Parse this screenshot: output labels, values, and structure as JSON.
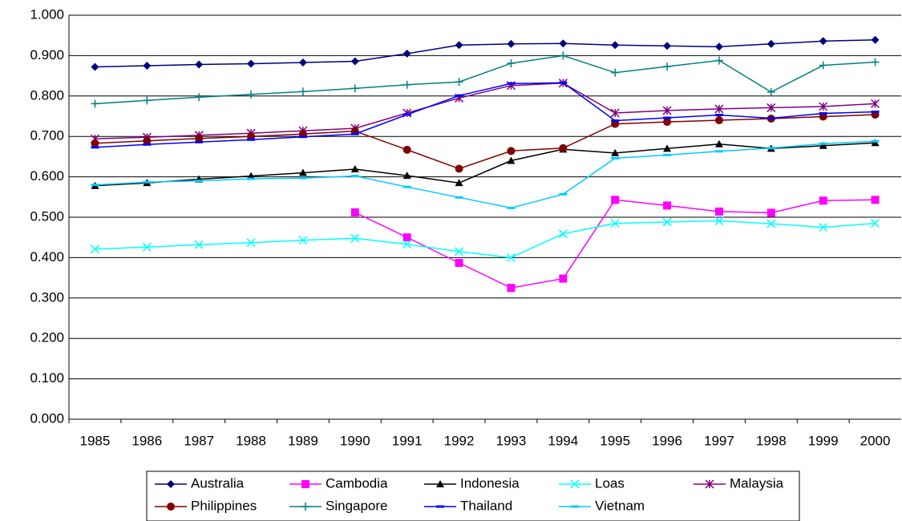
{
  "chart_data": {
    "type": "line",
    "categories": [
      "1985",
      "1986",
      "1987",
      "1988",
      "1989",
      "1990",
      "1991",
      "1992",
      "1993",
      "1994",
      "1995",
      "1996",
      "1997",
      "1998",
      "1999",
      "2000"
    ],
    "ylim": [
      0,
      1
    ],
    "yticks": [
      {
        "value": 0,
        "label": "0.000"
      },
      {
        "value": 0.1,
        "label": "0.100"
      },
      {
        "value": 0.2,
        "label": "0.200"
      },
      {
        "value": 0.3,
        "label": "0.300"
      },
      {
        "value": 0.4,
        "label": "0.400"
      },
      {
        "value": 0.5,
        "label": "0.500"
      },
      {
        "value": 0.6,
        "label": "0.600"
      },
      {
        "value": 0.7,
        "label": "0.700"
      },
      {
        "value": 0.8,
        "label": "0.800"
      },
      {
        "value": 0.9,
        "label": "0.900"
      },
      {
        "value": 1,
        "label": "1.000"
      }
    ],
    "grid": true,
    "legend": "bottom",
    "series": [
      {
        "name": "Australia",
        "color": "#000080",
        "marker": "diamond",
        "values": [
          0.872,
          0.875,
          0.878,
          0.88,
          0.883,
          0.886,
          0.905,
          0.926,
          0.929,
          0.93,
          0.926,
          0.924,
          0.922,
          0.929,
          0.936,
          0.939
        ]
      },
      {
        "name": "Cambodia",
        "color": "#ff00ff",
        "marker": "square",
        "values": [
          null,
          null,
          null,
          null,
          null,
          0.512,
          0.45,
          0.387,
          0.325,
          0.348,
          0.543,
          0.529,
          0.514,
          0.511,
          0.541,
          0.543
        ]
      },
      {
        "name": "Indonesia",
        "color": "#000000",
        "marker": "triangle",
        "values": [
          0.578,
          0.585,
          0.594,
          0.602,
          0.61,
          0.619,
          0.603,
          0.585,
          0.64,
          0.668,
          0.659,
          0.67,
          0.681,
          0.67,
          0.677,
          0.684
        ]
      },
      {
        "name": "Loas",
        "color": "#00ffff",
        "marker": "x",
        "values": [
          0.421,
          0.426,
          0.432,
          0.437,
          0.443,
          0.448,
          0.433,
          0.415,
          0.4,
          0.459,
          0.485,
          0.488,
          0.491,
          0.484,
          0.475,
          0.485
        ]
      },
      {
        "name": "Malaysia",
        "color": "#800080",
        "marker": "star",
        "values": [
          0.694,
          0.698,
          0.703,
          0.708,
          0.714,
          0.72,
          0.758,
          0.795,
          0.826,
          0.832,
          0.758,
          0.764,
          0.768,
          0.771,
          0.774,
          0.781
        ]
      },
      {
        "name": "Philippines",
        "color": "#800000",
        "marker": "circle",
        "values": [
          0.683,
          0.689,
          0.695,
          0.7,
          0.706,
          0.713,
          0.667,
          0.62,
          0.664,
          0.671,
          0.731,
          0.736,
          0.74,
          0.744,
          0.749,
          0.754
        ]
      },
      {
        "name": "Singapore",
        "color": "#008080",
        "marker": "plus",
        "values": [
          0.781,
          0.789,
          0.797,
          0.804,
          0.811,
          0.819,
          0.828,
          0.835,
          0.881,
          0.9,
          0.858,
          0.873,
          0.888,
          0.81,
          0.876,
          0.884
        ]
      },
      {
        "name": "Thailand",
        "color": "#0000ff",
        "marker": "dash",
        "values": [
          0.673,
          0.68,
          0.686,
          0.692,
          0.699,
          0.706,
          0.754,
          0.801,
          0.831,
          0.833,
          0.739,
          0.746,
          0.753,
          0.745,
          0.757,
          0.761
        ]
      },
      {
        "name": "Vietnam",
        "color": "#00ccff",
        "marker": "dash",
        "values": [
          0.58,
          0.587,
          0.59,
          0.595,
          0.597,
          0.602,
          0.575,
          0.549,
          0.523,
          0.557,
          0.646,
          0.654,
          0.663,
          0.671,
          0.682,
          0.688
        ]
      }
    ]
  }
}
